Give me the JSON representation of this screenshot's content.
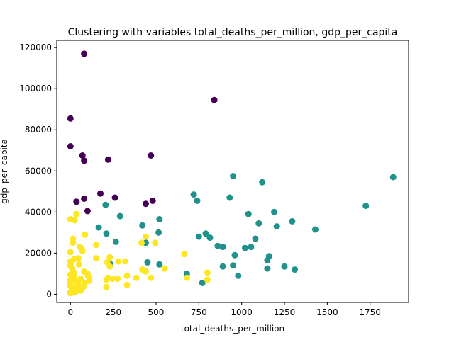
{
  "chart_data": {
    "type": "scatter",
    "title": "Clustering with variables total_deaths_per_million, gdp_per_capita",
    "xlabel": "total_deaths_per_million",
    "ylabel": "gdp_per_capita",
    "xlim": [
      -80,
      1975
    ],
    "ylim": [
      -4000,
      123500
    ],
    "xticks": [
      0,
      250,
      500,
      750,
      1000,
      1250,
      1500,
      1750
    ],
    "yticks": [
      0,
      20000,
      40000,
      60000,
      80000,
      100000,
      120000
    ],
    "grid": false,
    "series": [
      {
        "color": "#440154",
        "points": [
          [
            80,
            117000
          ],
          [
            840,
            94500
          ],
          [
            0,
            85500
          ],
          [
            0,
            72000
          ],
          [
            70,
            67500
          ],
          [
            470,
            67500
          ],
          [
            80,
            65000
          ],
          [
            220,
            65500
          ],
          [
            175,
            49000
          ],
          [
            260,
            47000
          ],
          [
            80,
            46500
          ],
          [
            480,
            45500
          ],
          [
            35,
            45000
          ],
          [
            440,
            44000
          ],
          [
            100,
            40500
          ]
        ]
      },
      {
        "color": "#21918c",
        "points": [
          [
            950,
            57500
          ],
          [
            1885,
            57000
          ],
          [
            1120,
            54500
          ],
          [
            720,
            48500
          ],
          [
            930,
            47000
          ],
          [
            740,
            45500
          ],
          [
            1725,
            43000
          ],
          [
            205,
            43500
          ],
          [
            1190,
            40000
          ],
          [
            1040,
            39000
          ],
          [
            290,
            38000
          ],
          [
            520,
            36500
          ],
          [
            1100,
            34500
          ],
          [
            1295,
            35500
          ],
          [
            165,
            32500
          ],
          [
            420,
            33500
          ],
          [
            1205,
            33000
          ],
          [
            1430,
            31500
          ],
          [
            515,
            30000
          ],
          [
            790,
            29500
          ],
          [
            750,
            28000
          ],
          [
            210,
            29500
          ],
          [
            815,
            27500
          ],
          [
            1080,
            27000
          ],
          [
            265,
            25500
          ],
          [
            440,
            25000
          ],
          [
            860,
            23500
          ],
          [
            890,
            23000
          ],
          [
            1020,
            22500
          ],
          [
            1055,
            23000
          ],
          [
            1160,
            18500
          ],
          [
            960,
            19000
          ],
          [
            1150,
            16500
          ],
          [
            450,
            15500
          ],
          [
            230,
            15000
          ],
          [
            520,
            14500
          ],
          [
            230,
            14500
          ],
          [
            890,
            13500
          ],
          [
            950,
            14000
          ],
          [
            1250,
            13500
          ],
          [
            1150,
            12500
          ],
          [
            1310,
            12000
          ],
          [
            680,
            10000
          ],
          [
            980,
            9000
          ],
          [
            770,
            5500
          ]
        ]
      },
      {
        "color": "#fde725",
        "points": [
          [
            35,
            39000
          ],
          [
            0,
            36500
          ],
          [
            25,
            36000
          ],
          [
            85,
            29000
          ],
          [
            440,
            28000
          ],
          [
            15,
            27000
          ],
          [
            415,
            25000
          ],
          [
            15,
            25000
          ],
          [
            495,
            25000
          ],
          [
            150,
            24000
          ],
          [
            55,
            23000
          ],
          [
            65,
            22000
          ],
          [
            70,
            21000
          ],
          [
            0,
            20500
          ],
          [
            665,
            19500
          ],
          [
            230,
            18000
          ],
          [
            45,
            17500
          ],
          [
            150,
            17500
          ],
          [
            20,
            17000
          ],
          [
            0,
            16000
          ],
          [
            280,
            16000
          ],
          [
            320,
            16000
          ],
          [
            215,
            15500
          ],
          [
            5,
            15000
          ],
          [
            50,
            14500
          ],
          [
            0,
            14000
          ],
          [
            230,
            13500
          ],
          [
            550,
            12500
          ],
          [
            420,
            12000
          ],
          [
            10,
            12500
          ],
          [
            440,
            11000
          ],
          [
            80,
            11000
          ],
          [
            20,
            10500
          ],
          [
            100,
            10000
          ],
          [
            800,
            10500
          ],
          [
            0,
            9500
          ],
          [
            330,
            9000
          ],
          [
            105,
            8500
          ],
          [
            470,
            8000
          ],
          [
            680,
            8000
          ],
          [
            220,
            8000
          ],
          [
            20,
            8500
          ],
          [
            385,
            8000
          ],
          [
            245,
            7500
          ],
          [
            275,
            7500
          ],
          [
            60,
            7500
          ],
          [
            0,
            7000
          ],
          [
            210,
            7000
          ],
          [
            800,
            7000
          ],
          [
            110,
            6500
          ],
          [
            35,
            6000
          ],
          [
            0,
            5500
          ],
          [
            85,
            5500
          ],
          [
            45,
            5000
          ],
          [
            330,
            4500
          ],
          [
            210,
            3500
          ],
          [
            75,
            3500
          ],
          [
            0,
            4000
          ],
          [
            30,
            3000
          ],
          [
            55,
            3000
          ],
          [
            20,
            2500
          ],
          [
            40,
            2000
          ],
          [
            5,
            1500
          ],
          [
            0,
            1000
          ],
          [
            10,
            800
          ],
          [
            30,
            1200
          ],
          [
            60,
            1800
          ],
          [
            0,
            500
          ]
        ]
      }
    ]
  }
}
